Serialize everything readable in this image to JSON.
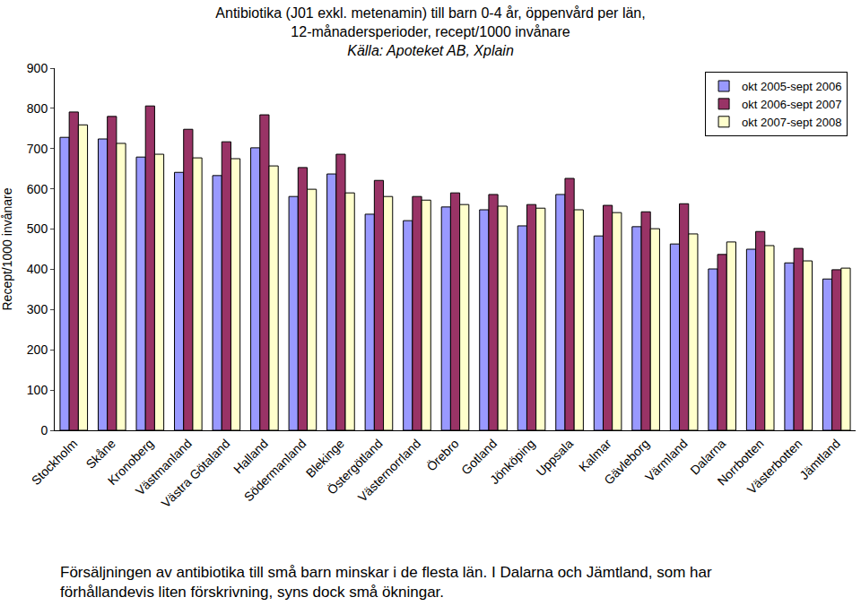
{
  "chart_data": {
    "type": "bar",
    "title": [
      "Antibiotika (J01 exkl. metenamin) till barn 0-4 år, öppenvård per län,",
      "12-månadersperioder, recept/1000 invånare"
    ],
    "subtitle": "Källa: Apoteket AB, Xplain",
    "y_label": "Recept/1000 invånare",
    "annotations": [
      "Försäljningen av antibiotika till små barn minskar i de flesta län. I Dalarna och Jämtland, som har",
      "förhållandevis liten förskrivning, syns dock små ökningar."
    ],
    "categories": [
      "Stockholm",
      "Skåne",
      "Kronoberg",
      "Västmanland",
      "Västra Götaland",
      "Halland",
      "Södermanland",
      "Blekinge",
      "Östergötland",
      "Västernorrland",
      "Örebro",
      "Gotland",
      "Jönköping",
      "Uppsala",
      "Kalmar",
      "Gävleborg",
      "Värmland",
      "Dalarna",
      "Norrbotten",
      "Västerbotten",
      "Jämtland"
    ],
    "series": [
      {
        "name": "okt 2005-sept 2006",
        "color": "#9999ff",
        "values": [
          728,
          724,
          679,
          641,
          633,
          702,
          581,
          637,
          537,
          521,
          555,
          548,
          508,
          586,
          483,
          506,
          463,
          401,
          450,
          416,
          376
        ]
      },
      {
        "name": "okt 2006-sept 2007",
        "color": "#993366",
        "values": [
          791,
          780,
          806,
          748,
          717,
          784,
          653,
          686,
          621,
          581,
          590,
          586,
          561,
          626,
          559,
          543,
          563,
          437,
          494,
          452,
          399
        ]
      },
      {
        "name": "okt 2007-sept 2008",
        "color": "#ffffcc",
        "values": [
          759,
          713,
          686,
          677,
          675,
          657,
          599,
          590,
          581,
          572,
          561,
          557,
          552,
          548,
          541,
          501,
          488,
          468,
          459,
          421,
          403
        ]
      }
    ],
    "ylim": [
      0,
      900
    ],
    "yticks": [
      0,
      100,
      200,
      300,
      400,
      500,
      600,
      700,
      800,
      900
    ],
    "grid": false,
    "legend": "upper right"
  }
}
